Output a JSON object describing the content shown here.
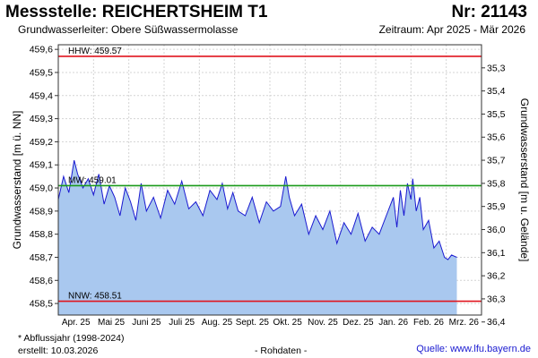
{
  "header": {
    "title": "Messstelle: REICHERTSHEIM T1",
    "number": "Nr: 21143",
    "aquifer": "Grundwasserleiter:   Obere Süßwassermolasse",
    "period": "Zeitraum: Apr 2025 - Mär 2026"
  },
  "footer": {
    "note": "* Abflussjahr (1998-2024)",
    "created": "erstellt:  10.03.2026",
    "raw": "- Rohdaten -",
    "source": "Quelle: www.lfu.bayern.de"
  },
  "chart_data": {
    "type": "area",
    "ylabel": "Grundwasserstand [m ü. NN]",
    "ylabel_right": "Grundwasserstand [m u. Gelände]",
    "ylim": [
      458.45,
      459.62
    ],
    "y_ticks": [
      "459,6",
      "459,5",
      "459,4",
      "459,3",
      "459,2",
      "459,1",
      "459,0",
      "458,9",
      "458,8",
      "458,7",
      "458,6",
      "458,5"
    ],
    "right_ylim": [
      35.2,
      36.37
    ],
    "right_ticks": [
      "35,3",
      "35,4",
      "35,5",
      "35,6",
      "35,7",
      "35,8",
      "35,9",
      "36,0",
      "36,1",
      "36,2",
      "36,3",
      "36,4"
    ],
    "x_categories": [
      "Apr. 25",
      "Mai 25",
      "Juni 25",
      "Juli 25",
      "Aug. 25",
      "Sept. 25",
      "Okt. 25",
      "Nov. 25",
      "Dez. 25",
      "Jan. 26",
      "Feb. 26",
      "Mrz. 26"
    ],
    "grid": true,
    "reference_lines": [
      {
        "label": "HHW: 459.57",
        "value": 459.57,
        "color": "#e0141e"
      },
      {
        "label": "MW: 459.01",
        "value": 459.01,
        "color": "#1a9a1a"
      },
      {
        "label": "NNW: 458.51",
        "value": 458.51,
        "color": "#e0141e"
      }
    ],
    "series": [
      {
        "line_color": "#1a1ad0",
        "fill_color": "#a9c8ef",
        "x_month": [
          0,
          0.15,
          0.3,
          0.45,
          0.55,
          0.7,
          0.85,
          1.0,
          1.15,
          1.3,
          1.45,
          1.6,
          1.75,
          1.9,
          2.05,
          2.2,
          2.35,
          2.5,
          2.7,
          2.9,
          3.1,
          3.3,
          3.5,
          3.7,
          3.9,
          4.1,
          4.3,
          4.5,
          4.65,
          4.8,
          4.95,
          5.1,
          5.3,
          5.5,
          5.7,
          5.9,
          6.1,
          6.3,
          6.45,
          6.55,
          6.7,
          6.9,
          7.1,
          7.3,
          7.5,
          7.7,
          7.9,
          8.1,
          8.3,
          8.5,
          8.7,
          8.9,
          9.1,
          9.3,
          9.5,
          9.6,
          9.7,
          9.8,
          9.9,
          10.0,
          10.05,
          10.15,
          10.25,
          10.35,
          10.5,
          10.65,
          10.8,
          10.95,
          11.05,
          11.15,
          11.3
        ],
        "values": [
          458.95,
          459.05,
          458.98,
          459.12,
          459.06,
          459.0,
          459.04,
          458.97,
          459.06,
          458.93,
          459.01,
          458.96,
          458.88,
          459.0,
          458.94,
          458.86,
          459.02,
          458.9,
          458.96,
          458.87,
          458.99,
          458.93,
          459.03,
          458.91,
          458.94,
          458.88,
          458.99,
          458.95,
          459.02,
          458.91,
          458.98,
          458.9,
          458.88,
          458.96,
          458.85,
          458.94,
          458.9,
          458.92,
          459.05,
          458.96,
          458.88,
          458.93,
          458.8,
          458.88,
          458.82,
          458.9,
          458.76,
          458.85,
          458.8,
          458.89,
          458.77,
          458.83,
          458.8,
          458.88,
          458.96,
          458.83,
          458.99,
          458.88,
          459.02,
          458.95,
          459.04,
          458.9,
          458.96,
          458.82,
          458.86,
          458.74,
          458.77,
          458.7,
          458.69,
          458.71,
          458.7
        ]
      }
    ]
  }
}
